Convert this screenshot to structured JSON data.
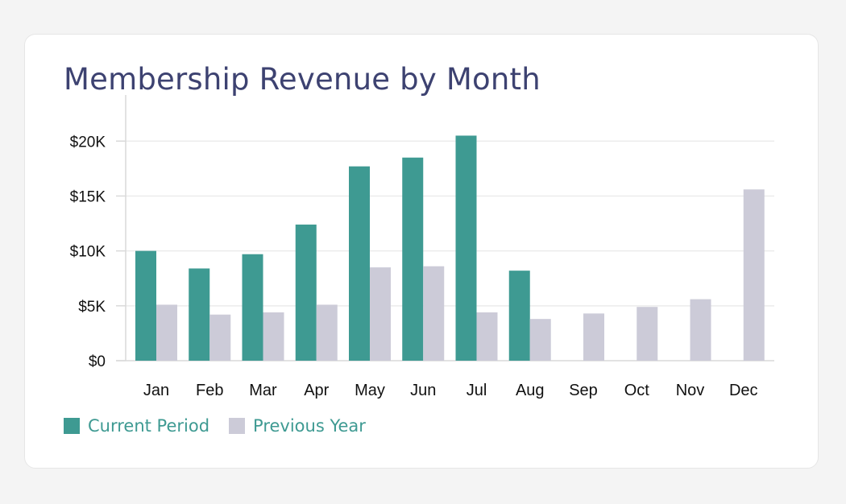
{
  "chart_data": {
    "type": "bar",
    "title": "Membership Revenue by Month",
    "categories": [
      "Jan",
      "Feb",
      "Mar",
      "Apr",
      "May",
      "Jun",
      "Jul",
      "Aug",
      "Sep",
      "Oct",
      "Nov",
      "Dec"
    ],
    "series": [
      {
        "name": "Current Period",
        "color": "#3e9a92",
        "values": [
          10000,
          8400,
          9700,
          12400,
          17700,
          18500,
          20500,
          8200,
          null,
          null,
          null,
          null
        ]
      },
      {
        "name": "Previous Year",
        "color": "#cccbd8",
        "values": [
          5100,
          4200,
          4400,
          5100,
          8500,
          8600,
          4400,
          3800,
          4300,
          4900,
          5600,
          15600
        ]
      }
    ],
    "y_ticks": [
      {
        "value": 0,
        "label": "$0"
      },
      {
        "value": 5000,
        "label": "$5K"
      },
      {
        "value": 10000,
        "label": "$10K"
      },
      {
        "value": 15000,
        "label": "$15K"
      },
      {
        "value": 20000,
        "label": "$20K"
      }
    ],
    "ylim": [
      0,
      22000
    ],
    "grid": true,
    "legend_position": "bottom-left"
  },
  "colors": {
    "title": "#3d4271",
    "legend_text": "#3e9a92",
    "axis_text": "#111111",
    "grid": "#ececec",
    "axis": "#d9d9d9"
  }
}
